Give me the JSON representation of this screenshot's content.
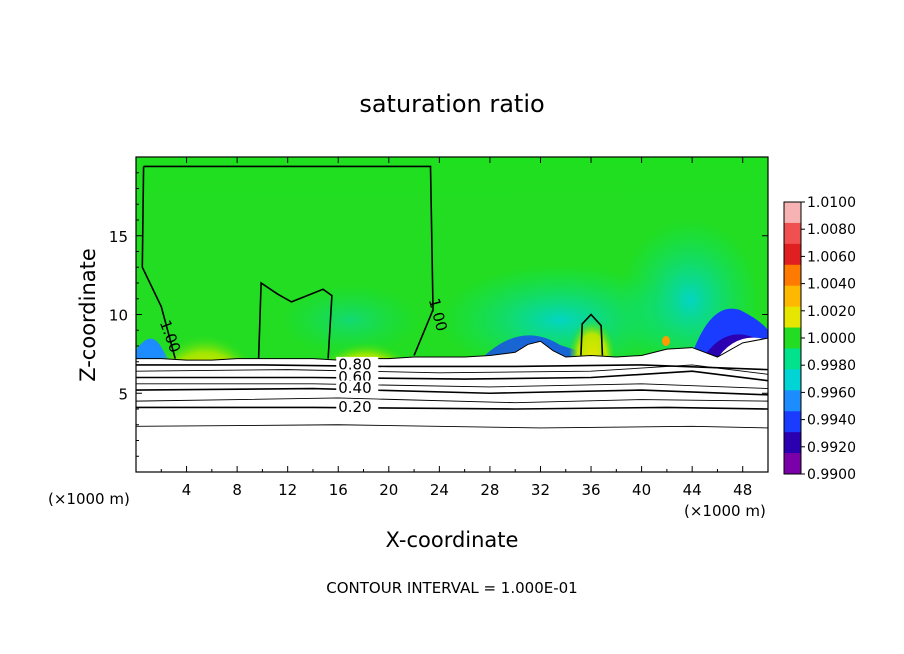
{
  "chart_data": {
    "type": "heatmap",
    "title": "saturation ratio",
    "xlabel": "X-coordinate",
    "ylabel": "Z-coordinate",
    "x_unit_left": "(×1000 m)",
    "x_unit_right": "(×1000 m)",
    "footer": "CONTOUR INTERVAL = 1.000E-01",
    "xlim": [
      0,
      50
    ],
    "ylim": [
      0,
      20
    ],
    "x_ticks": [
      4,
      8,
      12,
      16,
      20,
      24,
      28,
      32,
      36,
      40,
      44,
      48
    ],
    "y_ticks": [
      5,
      10,
      15
    ],
    "x_tick_labels": [
      "4",
      "8",
      "12",
      "16",
      "20",
      "24",
      "28",
      "32",
      "36",
      "40",
      "44",
      "48"
    ],
    "y_tick_labels": [
      "5",
      "10",
      "15"
    ],
    "colorbar": {
      "levels": [
        "1.0100",
        "1.0080",
        "1.0060",
        "1.0040",
        "1.0020",
        "1.0000",
        "0.9980",
        "0.9960",
        "0.9940",
        "0.9920",
        "0.9900"
      ],
      "colors": [
        "#f7b3b3",
        "#f05050",
        "#e02020",
        "#ff7a00",
        "#ffb800",
        "#e6e600",
        "#22dd22",
        "#00e38c",
        "#00d4d4",
        "#1c8cff",
        "#1a3cff",
        "#2a00b0",
        "#7a00a8"
      ]
    },
    "surface_band": {
      "x": [
        0,
        2,
        4,
        6,
        8,
        10,
        12,
        14,
        16,
        18,
        20,
        22,
        24,
        26,
        28,
        30,
        31,
        32,
        33,
        34,
        36,
        38,
        40,
        42,
        44,
        46,
        48,
        50
      ],
      "top_z": [
        7.2,
        7.2,
        7.1,
        7.1,
        7.2,
        7.2,
        7.2,
        7.2,
        7.1,
        7.2,
        7.2,
        7.3,
        7.3,
        7.3,
        7.4,
        7.6,
        8.1,
        8.3,
        7.7,
        7.3,
        7.4,
        7.3,
        7.4,
        7.8,
        7.9,
        7.3,
        8.2,
        8.5
      ]
    },
    "contours": [
      {
        "level": 1.0,
        "label": "1.00",
        "path": [
          [
            0.6,
            19.4
          ],
          [
            23.3,
            19.4
          ],
          [
            23.5,
            10.3
          ],
          [
            22.0,
            7.4
          ]
        ]
      },
      {
        "level": 1.0,
        "label": "1.00",
        "path": [
          [
            0.6,
            19.4
          ],
          [
            0.5,
            13.0
          ],
          [
            2.0,
            10.5
          ],
          [
            3.1,
            7.2
          ]
        ]
      },
      {
        "level": 1.0,
        "label": "",
        "path": [
          [
            9.7,
            7.2
          ],
          [
            9.9,
            12.0
          ],
          [
            11.2,
            11.3
          ],
          [
            12.3,
            10.8
          ],
          [
            14.8,
            11.6
          ],
          [
            15.5,
            11.2
          ],
          [
            15.2,
            7.2
          ]
        ]
      },
      {
        "level": 1.0,
        "label": "",
        "path": [
          [
            35.2,
            7.4
          ],
          [
            35.3,
            9.4
          ],
          [
            36.0,
            10.0
          ],
          [
            36.8,
            9.3
          ],
          [
            36.9,
            7.4
          ]
        ]
      },
      {
        "level": 0.8,
        "label": "0.80",
        "path": [
          [
            0,
            6.8
          ],
          [
            10,
            6.8
          ],
          [
            20,
            6.7
          ],
          [
            30,
            6.7
          ],
          [
            40,
            6.8
          ],
          [
            50,
            6.5
          ]
        ]
      },
      {
        "level": 0.7,
        "label": "",
        "path": [
          [
            0,
            6.4
          ],
          [
            12,
            6.5
          ],
          [
            24,
            6.3
          ],
          [
            36,
            6.4
          ],
          [
            44,
            6.8
          ],
          [
            50,
            6.2
          ]
        ]
      },
      {
        "level": 0.6,
        "label": "0.60",
        "path": [
          [
            0,
            6.0
          ],
          [
            14,
            6.0
          ],
          [
            26,
            5.9
          ],
          [
            36,
            6.0
          ],
          [
            44,
            6.4
          ],
          [
            50,
            5.8
          ]
        ]
      },
      {
        "level": 0.5,
        "label": "",
        "path": [
          [
            0,
            5.6
          ],
          [
            14,
            5.6
          ],
          [
            28,
            5.4
          ],
          [
            40,
            5.6
          ],
          [
            50,
            5.3
          ]
        ]
      },
      {
        "level": 0.4,
        "label": "0.40",
        "path": [
          [
            0,
            5.2
          ],
          [
            14,
            5.3
          ],
          [
            28,
            5.0
          ],
          [
            40,
            5.2
          ],
          [
            50,
            4.9
          ]
        ]
      },
      {
        "level": 0.3,
        "label": "",
        "path": [
          [
            0,
            4.5
          ],
          [
            16,
            4.7
          ],
          [
            30,
            4.4
          ],
          [
            40,
            4.6
          ],
          [
            50,
            4.5
          ]
        ]
      },
      {
        "level": 0.2,
        "label": "0.20",
        "path": [
          [
            0,
            4.1
          ],
          [
            14,
            4.1
          ],
          [
            30,
            4.0
          ],
          [
            42,
            4.1
          ],
          [
            50,
            4.0
          ]
        ]
      },
      {
        "level": 0.1,
        "label": "",
        "path": [
          [
            0,
            2.9
          ],
          [
            16,
            3.0
          ],
          [
            32,
            2.8
          ],
          [
            44,
            2.9
          ],
          [
            50,
            2.8
          ]
        ]
      }
    ]
  }
}
